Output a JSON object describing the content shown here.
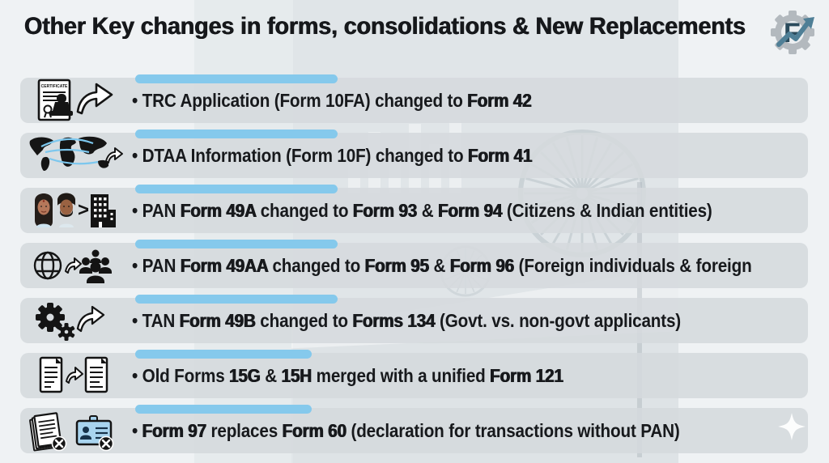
{
  "title": "Other Key changes in forms, consolidations & New Replacements",
  "logo": {
    "letter": "F"
  },
  "colors": {
    "accent_bar": "#85c9ec",
    "row_bg": "#d5d9dd",
    "page_bg": "#eff2f4",
    "title_text": "#16181b",
    "row_text": "#17191c",
    "icon_black": "#141414",
    "idcard_blue": "#a8d4ef",
    "map_link_blue": "#7cc7ee",
    "logo_arrow_teal": "#4f7f96",
    "logo_letter": "#2b4b5c"
  },
  "rows": [
    {
      "icon": "certificate-stamp-forward-icon",
      "icon_text": "CERTIFICATE",
      "segments": [
        {
          "t": "• "
        },
        {
          "t": "TRC Application (Form 10FA) changed to "
        },
        {
          "t": "Form 42",
          "b": true
        }
      ]
    },
    {
      "icon": "world-map-network-icon",
      "segments": [
        {
          "t": "• "
        },
        {
          "t": "DTAA Information (Form 10F) changed to "
        },
        {
          "t": "Form 41",
          "b": true
        }
      ]
    },
    {
      "icon": "citizens-to-building-icon",
      "segments": [
        {
          "t": "• "
        },
        {
          "t": "PAN "
        },
        {
          "t": "Form 49A",
          "b": true
        },
        {
          "t": " changed to "
        },
        {
          "t": "Form 93",
          "b": true
        },
        {
          "t": " & "
        },
        {
          "t": "Form 94",
          "b": true
        },
        {
          "t": " (Citizens & Indian entities)"
        }
      ]
    },
    {
      "icon": "globe-to-people-icon",
      "segments": [
        {
          "t": "• "
        },
        {
          "t": "PAN "
        },
        {
          "t": "Form 49AA",
          "b": true
        },
        {
          "t": " changed to "
        },
        {
          "t": "Form 95",
          "b": true
        },
        {
          "t": " & "
        },
        {
          "t": "Form 96",
          "b": true
        },
        {
          "t": " (Foreign individuals & foreign"
        }
      ]
    },
    {
      "icon": "gears-process-icon",
      "segments": [
        {
          "t": "• "
        },
        {
          "t": "TAN "
        },
        {
          "t": "Form 49B",
          "b": true
        },
        {
          "t": " changed to "
        },
        {
          "t": "Forms 134",
          "b": true
        },
        {
          "t": " (Govt. vs. non-govt applicants)"
        }
      ]
    },
    {
      "icon": "document-transfer-icon",
      "segments": [
        {
          "t": "• "
        },
        {
          "t": "Old Forms "
        },
        {
          "t": "15G",
          "b": true
        },
        {
          "t": " & "
        },
        {
          "t": "15H",
          "b": true
        },
        {
          "t": " merged with a unified "
        },
        {
          "t": "Form 121",
          "b": true
        }
      ]
    },
    {
      "icon": "cancelled-papers-idcard-icon",
      "segments": [
        {
          "t": "• "
        },
        {
          "t": "Form 97",
          "b": true
        },
        {
          "t": " replaces "
        },
        {
          "t": "Form 60",
          "b": true
        },
        {
          "t": " (declaration for transactions without PAN)"
        }
      ]
    }
  ]
}
